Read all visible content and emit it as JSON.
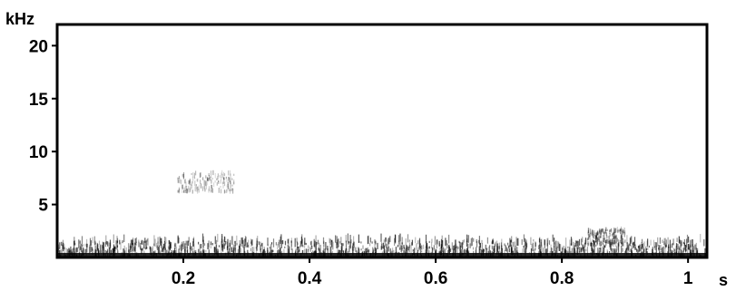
{
  "chart_data": {
    "type": "heatmap",
    "title": "",
    "xlabel": "s",
    "ylabel": "kHz",
    "xlim": [
      0,
      1.03
    ],
    "ylim": [
      0,
      22
    ],
    "x_ticks": [
      {
        "value": 0.2,
        "label": "0.2"
      },
      {
        "value": 0.4,
        "label": "0.4"
      },
      {
        "value": 0.6,
        "label": "0.6"
      },
      {
        "value": 0.8,
        "label": "0.8"
      },
      {
        "value": 1.0,
        "label": "1"
      }
    ],
    "y_ticks": [
      {
        "value": 5,
        "label": "5"
      },
      {
        "value": 10,
        "label": "10"
      },
      {
        "value": 15,
        "label": "15"
      },
      {
        "value": 20,
        "label": "20"
      }
    ],
    "energy_regions": [
      {
        "name": "background-noise",
        "t_start": 0.0,
        "t_end": 1.03,
        "f_low": 0.0,
        "f_high": 1.5,
        "intensity": 0.7
      },
      {
        "name": "call-high",
        "t_start": 0.19,
        "t_end": 0.28,
        "f_low": 6.0,
        "f_high": 7.8,
        "intensity": 0.35
      },
      {
        "name": "call-low",
        "t_start": 0.84,
        "t_end": 0.9,
        "f_low": 1.0,
        "f_high": 2.5,
        "intensity": 0.5
      }
    ],
    "colors": {
      "background": "#ffffff",
      "energy": "#000000",
      "axis": "#000000"
    },
    "grid": false
  }
}
